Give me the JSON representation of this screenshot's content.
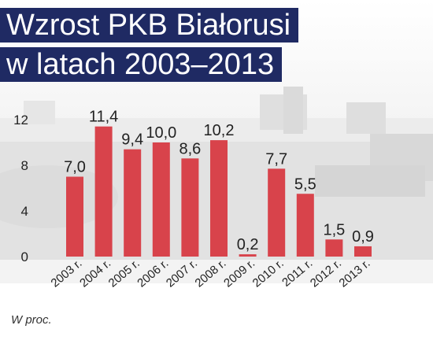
{
  "title_line1": "Wzrost PKB Białorusi",
  "title_line2": "w latach  2003–2013",
  "unit_note": "W proc.",
  "colors": {
    "bar": "#d8434b",
    "title_bg": "#1f2a63"
  },
  "chart_data": {
    "type": "bar",
    "categories": [
      "2003 r.",
      "2004 r.",
      "2005 r.",
      "2006 r.",
      "2007 r.",
      "2008 r.",
      "2009 r.",
      "2010 r.",
      "2011 r.",
      "2012 r.",
      "2013 r."
    ],
    "values": [
      7.0,
      11.4,
      9.4,
      10.0,
      8.6,
      10.2,
      0.2,
      7.7,
      5.5,
      1.5,
      0.9
    ],
    "value_labels": [
      "7,0",
      "11,4",
      "9,4",
      "10,0",
      "8,6",
      "10,2",
      "0,2",
      "7,7",
      "5,5",
      "1,5",
      "0,9"
    ],
    "y_ticks": [
      "0",
      "4",
      "8",
      "12"
    ],
    "ylim": [
      0,
      12
    ],
    "grid": false
  }
}
